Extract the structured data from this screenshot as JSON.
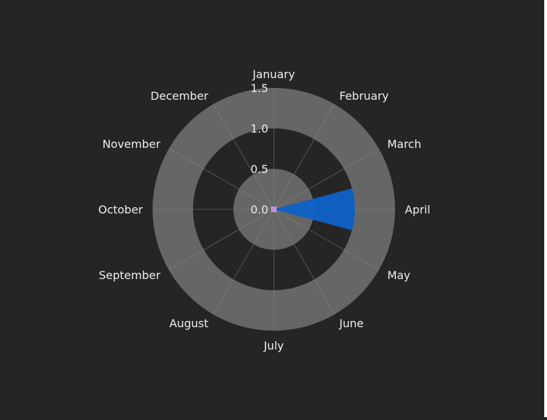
{
  "chart_data": {
    "type": "polar-bar",
    "angular_categories": [
      "January",
      "February",
      "March",
      "April",
      "May",
      "June",
      "July",
      "August",
      "September",
      "October",
      "November",
      "December"
    ],
    "direction": "clockwise",
    "rotation_start": "January at top",
    "radial_ticks": [
      "0.0",
      "0.5",
      "1.0",
      "1.5"
    ],
    "radial_range": [
      0,
      1.5
    ],
    "series": [
      {
        "values": [
          0,
          0,
          0,
          1.0,
          0,
          0,
          0,
          0,
          0,
          0,
          0,
          0
        ],
        "color": "#0d62c8"
      }
    ],
    "center_marker_color": "#c58fe0",
    "grid": true,
    "band_colors": {
      "light": "#666666",
      "dark": "#252525"
    },
    "background": "#252525",
    "font_color": "#eeeeee"
  }
}
